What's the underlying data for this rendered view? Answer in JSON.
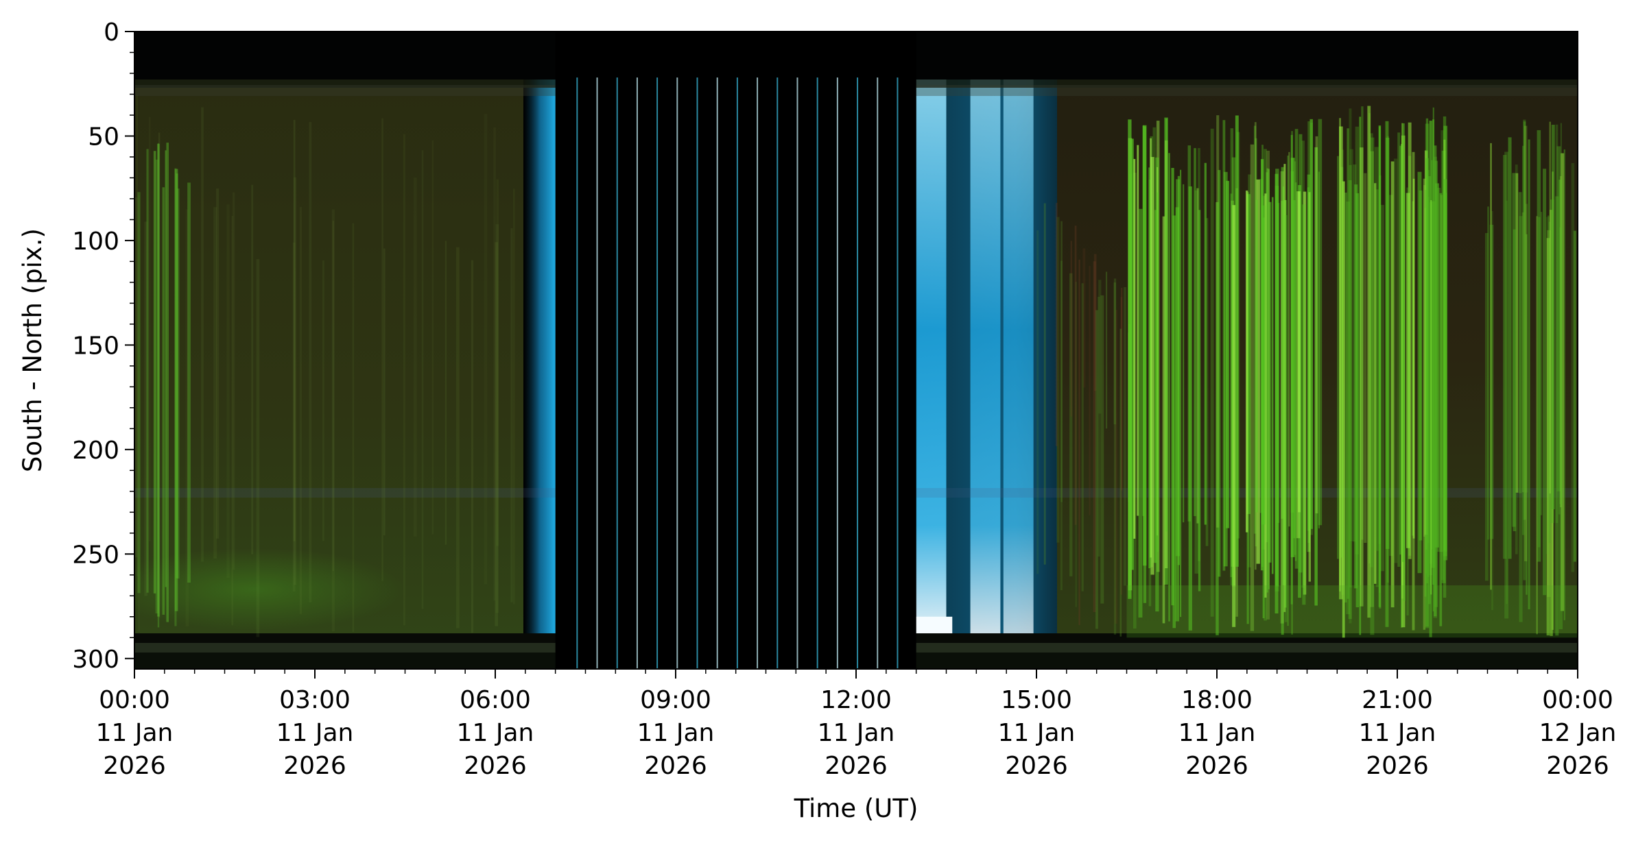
{
  "chart_data": {
    "type": "heatmap",
    "title": "",
    "xlabel": "Time (UT)",
    "ylabel": "South - North (pix.)",
    "x_range": [
      "2026-01-11 00:00",
      "2026-01-12 00:00"
    ],
    "ylim": [
      305,
      0
    ],
    "y_inverted": true,
    "grid": false,
    "legend": "none",
    "x_ticks": [
      {
        "time": "00:00",
        "day": "11 Jan",
        "year": "2026"
      },
      {
        "time": "03:00",
        "day": "11 Jan",
        "year": "2026"
      },
      {
        "time": "06:00",
        "day": "11 Jan",
        "year": "2026"
      },
      {
        "time": "09:00",
        "day": "11 Jan",
        "year": "2026"
      },
      {
        "time": "12:00",
        "day": "11 Jan",
        "year": "2026"
      },
      {
        "time": "15:00",
        "day": "11 Jan",
        "year": "2026"
      },
      {
        "time": "18:00",
        "day": "11 Jan",
        "year": "2026"
      },
      {
        "time": "21:00",
        "day": "11 Jan",
        "year": "2026"
      },
      {
        "time": "00:00",
        "day": "12 Jan",
        "year": "2026"
      }
    ],
    "y_ticks": [
      0,
      50,
      100,
      150,
      200,
      250,
      300
    ],
    "colors": {
      "night_background": "#2b2c12",
      "aurora_green": "#6cf02c",
      "twilight_blue": "#1aa8e0",
      "daylight_black": "#000000",
      "bright_white": "#f4fbff"
    }
  }
}
